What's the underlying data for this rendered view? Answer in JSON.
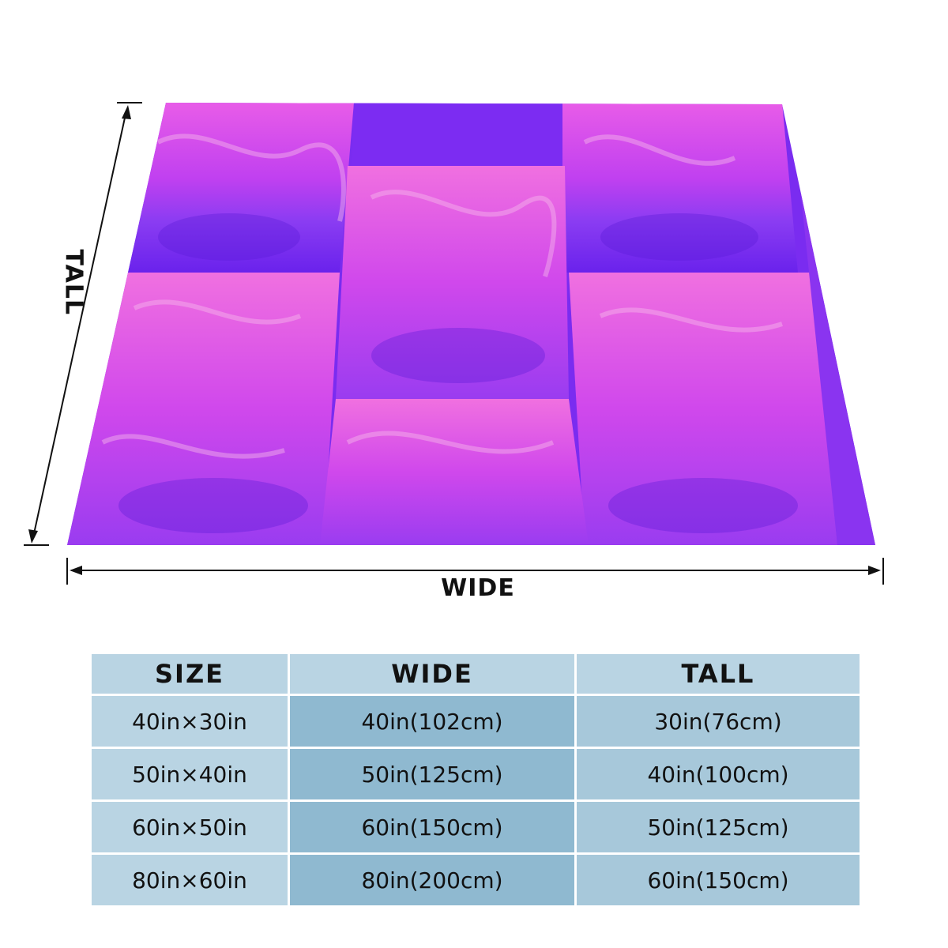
{
  "labels": {
    "tall": "TALL",
    "wide": "WIDE"
  },
  "table": {
    "headers": [
      "SIZE",
      "WIDE",
      "TALL"
    ],
    "rows": [
      {
        "size": "40in×30in",
        "wide": "40in(102cm)",
        "tall": "30in(76cm)"
      },
      {
        "size": "50in×40in",
        "wide": "50in(125cm)",
        "tall": "40in(100cm)"
      },
      {
        "size": "60in×50in",
        "wide": "60in(150cm)",
        "tall": "50in(125cm)"
      },
      {
        "size": "80in×60in",
        "wide": "80in(200cm)",
        "tall": "60in(150cm)"
      }
    ]
  },
  "colors": {
    "violet": "#7b2cf0",
    "magenta": "#e040f0",
    "pink": "#f28ad8",
    "header_blue": "#b9d4e3",
    "mid_blue": "#8fb9d0"
  }
}
